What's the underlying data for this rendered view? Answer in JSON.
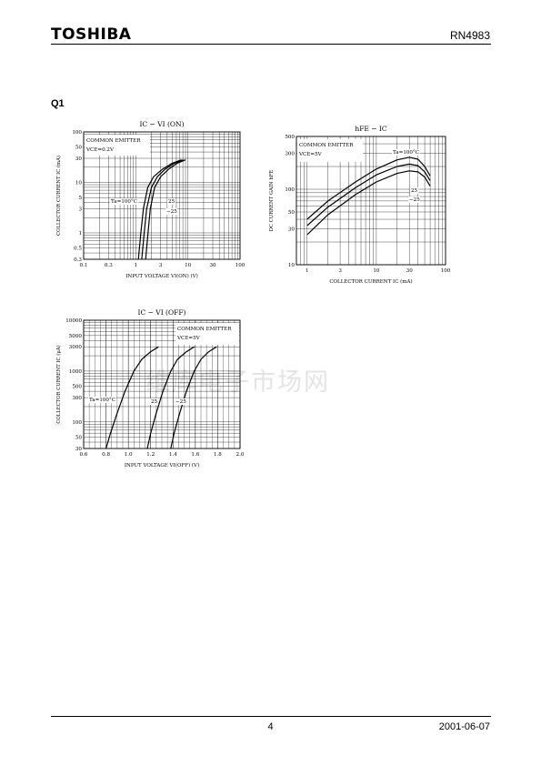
{
  "header": {
    "brand": "TOSHIBA",
    "part_number": "RN4983"
  },
  "section_label": "Q1",
  "footer": {
    "page_number": "4",
    "date": "2001-06-07"
  },
  "watermark": "维库电子市场网",
  "chart_data": [
    {
      "type": "line",
      "title": "IC − VI (ON)",
      "xlabel": "INPUT VOLTAGE   VI(ON)   (V)",
      "ylabel": "COLLECTOR CURRENT   IC   (mA)",
      "x_scale": "log",
      "y_scale": "log",
      "xlim": [
        0.1,
        100
      ],
      "ylim": [
        0.3,
        100
      ],
      "x_ticks": [
        0.1,
        0.3,
        1,
        3,
        10,
        30,
        100
      ],
      "x_tick_labels": [
        "0.1",
        "0.3",
        "1",
        "3",
        "10",
        "30",
        "100"
      ],
      "y_ticks": [
        0.3,
        0.5,
        1,
        3,
        5,
        10,
        30,
        50,
        100
      ],
      "y_tick_labels": [
        "0.3",
        "0.5",
        "1",
        "3",
        "5",
        "10",
        "30",
        "50",
        "100"
      ],
      "grid": true,
      "annotation_box": [
        "COMMON EMITTER",
        "VCE=0.2V"
      ],
      "series_labels": [
        "Ta=100°C",
        "25",
        "−25"
      ],
      "series": [
        {
          "name": "Ta=100°C",
          "x": [
            1.12,
            1.25,
            1.4,
            1.7,
            2.2,
            3.2,
            5,
            7.5
          ],
          "y": [
            0.3,
            1,
            3,
            8,
            13,
            18,
            24,
            28
          ]
        },
        {
          "name": "25",
          "x": [
            1.3,
            1.45,
            1.62,
            2.0,
            2.6,
            3.6,
            5.5,
            8.2
          ],
          "y": [
            0.3,
            1,
            3,
            8,
            13,
            18,
            24,
            28
          ]
        },
        {
          "name": "−25",
          "x": [
            1.55,
            1.72,
            1.9,
            2.3,
            3.0,
            4.2,
            6.2,
            9.0
          ],
          "y": [
            0.3,
            1,
            3,
            8,
            13,
            18,
            24,
            28
          ]
        }
      ]
    },
    {
      "type": "line",
      "title": "hFE − IC",
      "xlabel": "COLLECTOR CURRENT   IC   (mA)",
      "ylabel": "DC CURRENT GAIN   hFE",
      "x_scale": "log",
      "y_scale": "log",
      "xlim": [
        0.7,
        100
      ],
      "ylim": [
        10,
        500
      ],
      "x_ticks": [
        1,
        3,
        10,
        30,
        100
      ],
      "x_tick_labels": [
        "1",
        "3",
        "10",
        "30",
        "100"
      ],
      "y_ticks": [
        10,
        30,
        50,
        100,
        300,
        500
      ],
      "y_tick_labels": [
        "10",
        "30",
        "50",
        "100",
        "300",
        "500"
      ],
      "grid": true,
      "annotation_box": [
        "COMMON EMITTER",
        "VCE=5V"
      ],
      "series_labels": [
        "Ta=100°C",
        "25",
        "−25"
      ],
      "series": [
        {
          "name": "Ta=100°C",
          "x": [
            1,
            2,
            5,
            10,
            20,
            30,
            40,
            50,
            60
          ],
          "y": [
            40,
            70,
            125,
            185,
            245,
            265,
            250,
            200,
            150
          ]
        },
        {
          "name": "25",
          "x": [
            1,
            2,
            5,
            10,
            20,
            30,
            40,
            50,
            60
          ],
          "y": [
            33,
            58,
            105,
            155,
            200,
            215,
            205,
            170,
            130
          ]
        },
        {
          "name": "−25",
          "x": [
            1,
            2,
            5,
            10,
            20,
            30,
            40,
            50,
            60
          ],
          "y": [
            25,
            46,
            85,
            125,
            162,
            175,
            170,
            145,
            110
          ]
        }
      ]
    },
    {
      "type": "line",
      "title": "IC − VI (OFF)",
      "xlabel": "INPUT VOLTAGE   VI(OFF)   (V)",
      "ylabel": "COLLECTOR CURRENT   IC   (μA)",
      "x_scale": "linear",
      "y_scale": "log",
      "xlim": [
        0.6,
        2.0
      ],
      "ylim": [
        30,
        10000
      ],
      "x_ticks": [
        0.6,
        0.8,
        1.0,
        1.2,
        1.4,
        1.6,
        1.8,
        2.0
      ],
      "x_tick_labels": [
        "0.6",
        "0.8",
        "1.0",
        "1.2",
        "1.4",
        "1.6",
        "1.8",
        "2.0"
      ],
      "y_ticks": [
        30,
        50,
        100,
        300,
        500,
        1000,
        3000,
        5000,
        10000
      ],
      "y_tick_labels": [
        "30",
        "50",
        "100",
        "300",
        "500",
        "1000",
        "3000",
        "5000",
        "10000"
      ],
      "grid": true,
      "annotation_box": [
        "COMMON EMITTER",
        "VCE=5V"
      ],
      "series_labels": [
        "Ta=100°C",
        "25",
        "−25"
      ],
      "series": [
        {
          "name": "Ta=100°C",
          "x": [
            0.8,
            0.84,
            0.9,
            0.97,
            1.05,
            1.12,
            1.2,
            1.27
          ],
          "y": [
            30,
            60,
            150,
            400,
            1000,
            1700,
            2400,
            3000
          ]
        },
        {
          "name": "25",
          "x": [
            1.17,
            1.2,
            1.25,
            1.31,
            1.38,
            1.44,
            1.52,
            1.59
          ],
          "y": [
            30,
            60,
            150,
            400,
            1000,
            1700,
            2400,
            3000
          ]
        },
        {
          "name": "−25",
          "x": [
            1.38,
            1.41,
            1.46,
            1.52,
            1.59,
            1.65,
            1.72,
            1.79
          ],
          "y": [
            30,
            60,
            150,
            400,
            1000,
            1700,
            2400,
            3000
          ]
        }
      ]
    }
  ]
}
